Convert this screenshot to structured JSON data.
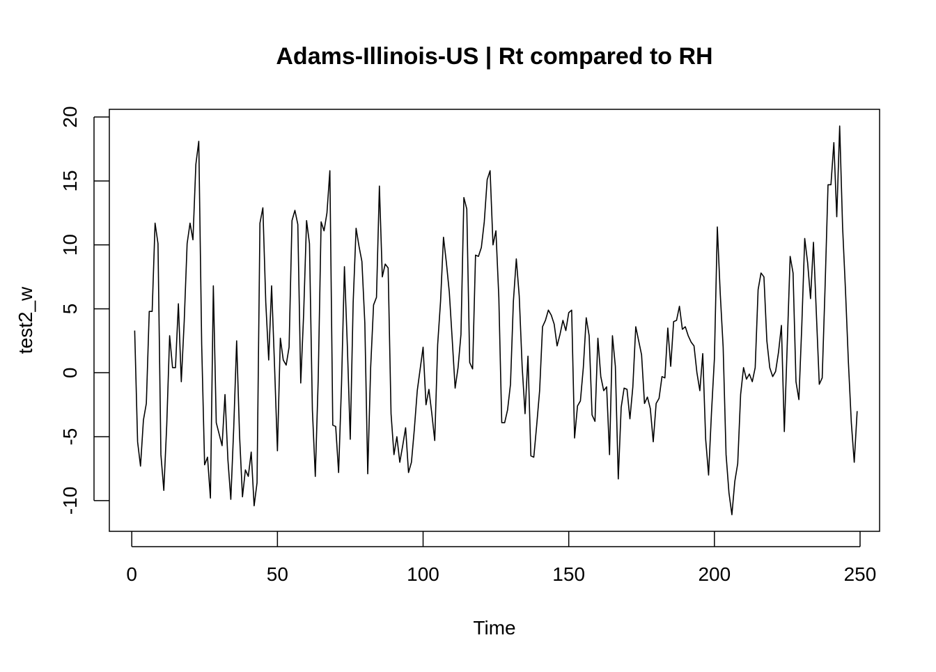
{
  "chart_data": {
    "type": "line",
    "title": "Adams-Illinois-US | Rt compared to RH",
    "xlabel": "Time",
    "ylabel": "test2_w",
    "xlim": [
      -7.7,
      256.7
    ],
    "ylim": [
      -12.4,
      20.6
    ],
    "x_ticks": [
      0,
      50,
      100,
      150,
      200,
      250
    ],
    "y_ticks": [
      -10,
      -5,
      0,
      5,
      10,
      15,
      20
    ],
    "x_tick_labels": [
      "0",
      "50",
      "100",
      "150",
      "200",
      "250"
    ],
    "y_tick_labels": [
      "-10",
      "-5",
      "0",
      "5",
      "10",
      "15",
      "20"
    ],
    "grid": false,
    "line_color": "#000000",
    "series": [
      {
        "x_start": 1,
        "values": [
          3.3,
          -5.4,
          -7.3,
          -3.7,
          -2.4,
          4.8,
          4.8,
          11.7,
          10.1,
          -6.4,
          -9.2,
          -4.1,
          2.9,
          0.4,
          0.4,
          5.4,
          -0.7,
          4.0,
          10.1,
          11.7,
          10.4,
          16.3,
          18.1,
          2.2,
          -7.2,
          -6.6,
          -9.8,
          6.8,
          -3.9,
          -4.8,
          -5.7,
          -1.7,
          -6.8,
          -9.9,
          -4.3,
          2.5,
          -4.9,
          -9.7,
          -7.6,
          -8.1,
          -6.2,
          -10.4,
          -8.6,
          11.7,
          12.9,
          5.5,
          1.0,
          6.8,
          0.6,
          -6.1,
          2.7,
          1.0,
          0.6,
          2.0,
          11.9,
          12.7,
          11.6,
          -0.8,
          4.6,
          11.9,
          10.1,
          -2.9,
          -8.1,
          -0.5,
          11.8,
          11.1,
          12.5,
          15.8,
          -4.1,
          -4.2,
          -7.8,
          -0.9,
          8.3,
          2.1,
          -5.2,
          5.5,
          11.3,
          9.9,
          8.7,
          3.9,
          -7.9,
          0.4,
          5.3,
          5.9,
          14.6,
          7.5,
          8.5,
          8.2,
          -3.2,
          -6.4,
          -5.0,
          -7.0,
          -5.7,
          -4.3,
          -7.8,
          -7.0,
          -4.4,
          -1.4,
          0.3,
          2.0,
          -2.5,
          -1.3,
          -3.2,
          -5.3,
          2.2,
          5.6,
          10.6,
          8.6,
          6.3,
          2.6,
          -1.2,
          0.4,
          3.0,
          13.7,
          12.8,
          0.8,
          0.3,
          9.2,
          9.1,
          9.8,
          11.8,
          15.1,
          15.8,
          10.0,
          11.1,
          5.9,
          -3.9,
          -3.9,
          -2.9,
          -0.9,
          5.6,
          8.9,
          6.0,
          0.5,
          -3.2,
          1.3,
          -6.5,
          -6.6,
          -4.1,
          -1.4,
          3.6,
          4.1,
          4.9,
          4.5,
          3.8,
          2.1,
          3.0,
          4.1,
          3.3,
          4.7,
          4.9,
          -5.1,
          -2.6,
          -2.2,
          0.4,
          4.3,
          2.9,
          -3.3,
          -3.8,
          2.7,
          -0.3,
          -1.4,
          -1.1,
          -6.4,
          2.9,
          0.5,
          -8.3,
          -2.7,
          -1.2,
          -1.3,
          -3.6,
          -1.1,
          3.6,
          2.5,
          1.4,
          -2.4,
          -1.9,
          -2.8,
          -5.4,
          -2.4,
          -2.0,
          -0.3,
          -0.4,
          3.5,
          0.5,
          4.0,
          4.1,
          5.2,
          3.4,
          3.6,
          2.9,
          2.4,
          2.1,
          0.0,
          -1.4,
          1.5,
          -5.2,
          -8.0,
          -3.1,
          1.1,
          11.4,
          6.2,
          2.0,
          -6.4,
          -9.4,
          -11.1,
          -8.5,
          -7.1,
          -1.7,
          0.4,
          -0.5,
          -0.1,
          -0.7,
          0.4,
          6.5,
          7.8,
          7.5,
          2.5,
          0.4,
          -0.3,
          0.1,
          1.6,
          3.7,
          -4.6,
          2.2,
          9.1,
          7.8,
          -0.7,
          -2.1,
          3.7,
          10.5,
          8.6,
          5.8,
          10.2,
          4.6,
          -0.9,
          -0.4,
          6.8,
          14.7,
          14.7,
          18.0,
          12.2,
          19.3,
          11.4,
          6.4,
          0.8,
          -3.9,
          -7.0,
          -3.0
        ]
      }
    ]
  }
}
